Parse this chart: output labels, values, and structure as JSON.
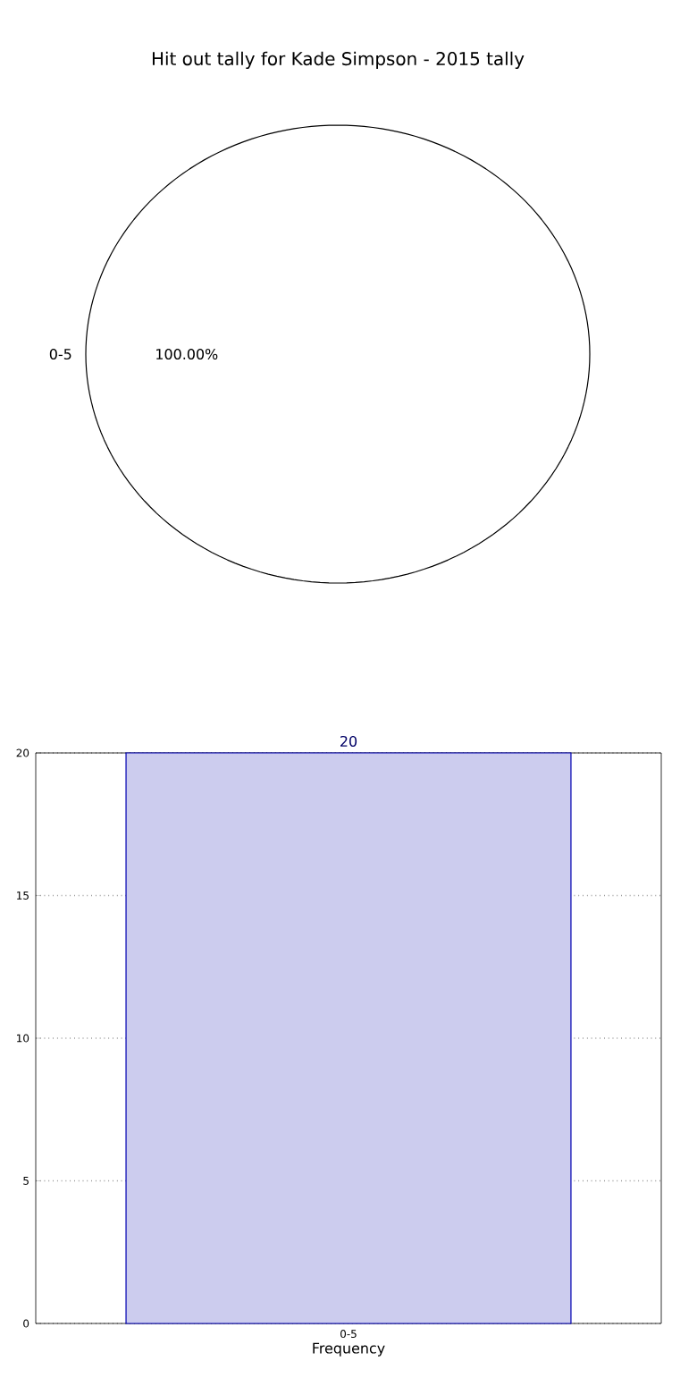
{
  "chart_data": [
    {
      "type": "pie",
      "title": "Hit out tally for Kade Simpson - 2015 tally",
      "categories": [
        "0-5"
      ],
      "values": [
        100
      ],
      "colors": [
        "#ffffff"
      ],
      "value_labels": [
        "100.00%"
      ]
    },
    {
      "type": "bar",
      "categories": [
        "0-5"
      ],
      "values": [
        20
      ],
      "color": "#ccccee",
      "xlabel": "Frequency",
      "ylim": [
        0,
        20
      ],
      "yticks": [
        0,
        5,
        10,
        15,
        20
      ],
      "grid": true,
      "data_labels": true
    }
  ]
}
